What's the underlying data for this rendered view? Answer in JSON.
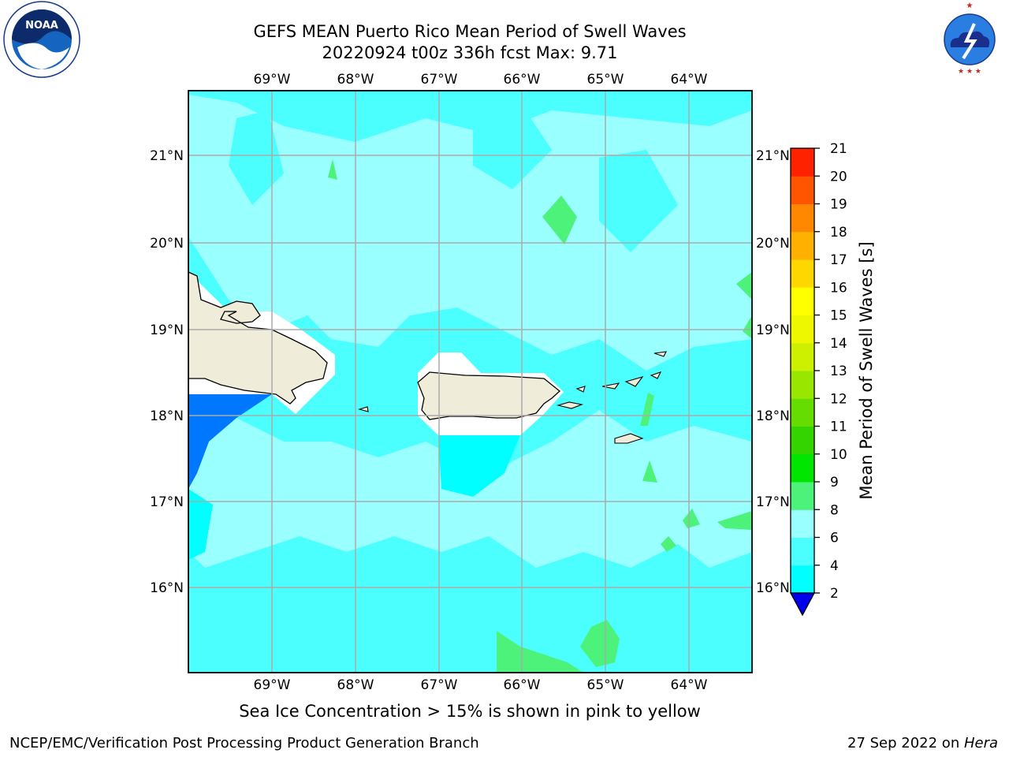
{
  "header": {
    "title_line1": "GEFS MEAN Puerto Rico Mean Period of Swell Waves",
    "title_line2": "20220924 t00z 336h fcst   Max: 9.71"
  },
  "logos": {
    "left": {
      "icon": "noaa-logo-icon",
      "text": "NOAA",
      "ring_text": "NATIONAL OCEANIC AND ATMOSPHERIC ADMINISTRATION · U.S. DEPARTMENT OF COMMERCE"
    },
    "right": {
      "icon": "national-weather-service-logo-icon",
      "ring_text": "NATIONAL WEATHER SERVICE"
    }
  },
  "map": {
    "longitude_labels": [
      "69°W",
      "68°W",
      "67°W",
      "66°W",
      "65°W",
      "64°W"
    ],
    "latitude_labels": [
      "21°N",
      "20°N",
      "19°N",
      "18°N",
      "17°N",
      "16°N"
    ],
    "colors": {
      "land": "#efedd9",
      "open_water_band_8_9": "#99ffff",
      "band_6_8": "#4cffff",
      "band_4_6": "#00ffff",
      "band_2_4": "#0077ff",
      "band_9_10": "#4cf27a",
      "gridline": "#aaaaaa"
    }
  },
  "colorbar": {
    "label": "Mean Period of Swell Waves [s]",
    "ticks": [
      "2",
      "4",
      "6",
      "8",
      "9",
      "10",
      "11",
      "12",
      "13",
      "14",
      "15",
      "16",
      "17",
      "18",
      "19",
      "20",
      "21"
    ],
    "colors": [
      "#0033ff",
      "#00ffff",
      "#4cffff",
      "#99ffff",
      "#4cf27a",
      "#00e600",
      "#33d400",
      "#66dd00",
      "#99e600",
      "#ccf000",
      "#eef700",
      "#ffff00",
      "#ffd700",
      "#ffb000",
      "#ff8800",
      "#ff5500",
      "#ff2200"
    ],
    "under_color": "#0000ee"
  },
  "caption": "Sea Ice Concentration > 15% is shown in pink to yellow",
  "footer": {
    "left": "NCEP/EMC/Verification Post Processing Product Generation Branch",
    "right_prefix": "27 Sep 2022 on ",
    "right_host": "Hera"
  }
}
